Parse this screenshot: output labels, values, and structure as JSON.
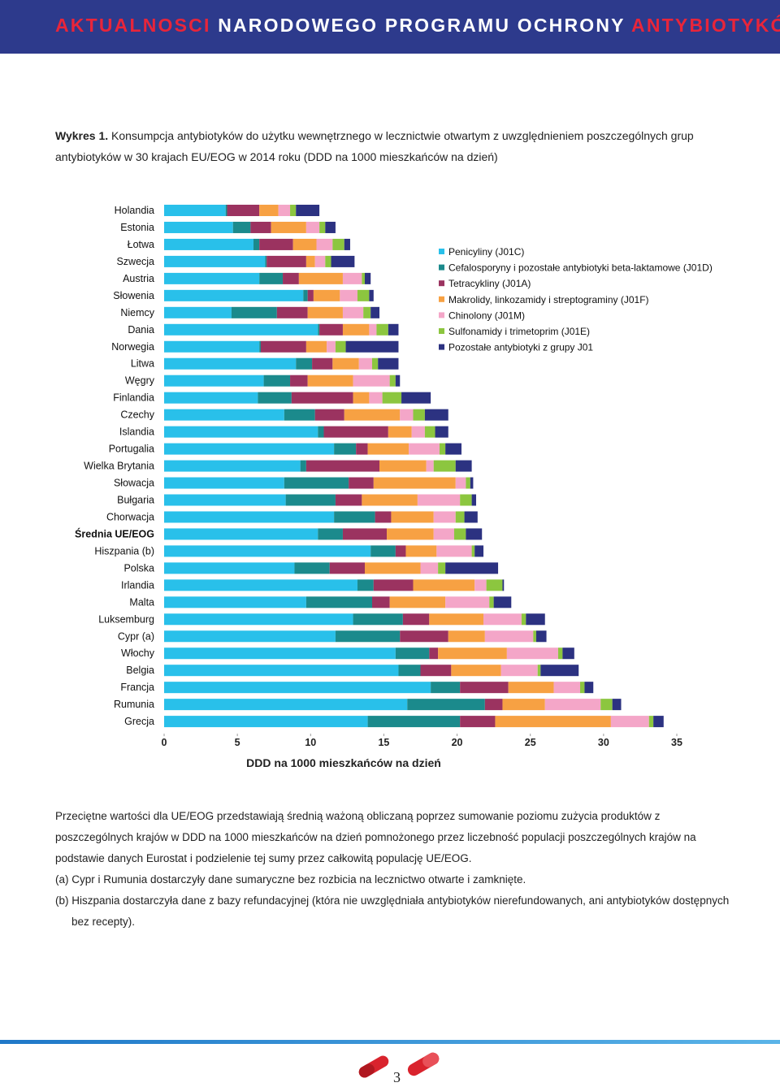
{
  "header": {
    "title_parts": [
      "AKTUALNOSCI",
      "NARODOWEGO PROGRAMU OCHRONY",
      "ANTYBIOTYKÓW"
    ]
  },
  "caption": {
    "label": "Wykres 1.",
    "text": "Konsumpcja antybiotyków do użytku wewnętrznego w lecznictwie otwartym z uwzględnieniem poszczególnych grup antybiotyków w 30 krajach EU/EOG w 2014 roku (DDD na 1000 mieszkańców na dzień)"
  },
  "chart_data": {
    "type": "stacked-barh",
    "x_label": "DDD na 1000 mieszkańców na dzień",
    "categories": [
      "Holandia",
      "Estonia",
      "Łotwa",
      "Szwecja",
      "Austria",
      "Słowenia",
      "Niemcy",
      "Dania",
      "Norwegia",
      "Litwa",
      "Węgry",
      "Finlandia",
      "Czechy",
      "Islandia",
      "Portugalia",
      "Wielka Brytania",
      "Słowacja",
      "Bułgaria",
      "Chorwacja",
      "Średnia UE/EOG",
      "Hiszpania (b)",
      "Polska",
      "Irlandia",
      "Malta",
      "Luksemburg",
      "Cypr (a)",
      "Włochy",
      "Belgia",
      "Francja",
      "Rumunia",
      "Grecja"
    ],
    "xlim": [
      0,
      35
    ],
    "xticks": [
      0,
      5,
      10,
      15,
      20,
      25,
      30,
      35
    ],
    "series": [
      {
        "name": "Penicyliny (J01C)",
        "color": "#29c0ea",
        "values": [
          4.2,
          4.7,
          6.1,
          6.9,
          6.5,
          9.5,
          4.6,
          10.5,
          6.5,
          9.0,
          6.8,
          6.4,
          8.2,
          10.5,
          11.6,
          9.3,
          8.2,
          8.3,
          11.6,
          10.5,
          14.1,
          8.9,
          13.2,
          9.7,
          12.9,
          11.7,
          15.8,
          16.0,
          18.2,
          16.6,
          13.9
        ]
      },
      {
        "name": "Cefalosporyny i pozostałe antybiotyki beta-laktamowe (J01D)",
        "color": "#1b8a8c",
        "values": [
          0.1,
          1.2,
          0.4,
          0.1,
          1.6,
          0.3,
          3.1,
          0.1,
          0.1,
          1.1,
          1.8,
          2.3,
          2.1,
          0.4,
          1.5,
          0.4,
          4.4,
          3.4,
          2.8,
          1.7,
          1.7,
          2.4,
          1.1,
          4.5,
          3.4,
          4.4,
          2.3,
          1.5,
          2.0,
          5.3,
          6.3
        ]
      },
      {
        "name": "Tetracykliny (J01A)",
        "color": "#9b3360",
        "values": [
          2.2,
          1.4,
          2.3,
          2.7,
          1.1,
          0.4,
          2.1,
          1.6,
          3.1,
          1.4,
          1.2,
          4.2,
          2.0,
          4.4,
          0.8,
          5.0,
          1.7,
          1.8,
          1.1,
          3.0,
          0.7,
          2.4,
          2.7,
          1.2,
          1.8,
          3.3,
          0.6,
          2.1,
          3.3,
          1.2,
          2.4
        ]
      },
      {
        "name": "Makrolidy, linkozamidy i streptograminy (J01F)",
        "color": "#f7a143",
        "values": [
          1.3,
          2.4,
          1.6,
          0.6,
          3.0,
          1.8,
          2.4,
          1.8,
          1.4,
          1.8,
          3.1,
          1.1,
          3.8,
          1.6,
          2.8,
          3.2,
          5.6,
          3.8,
          2.9,
          3.2,
          2.1,
          3.8,
          4.2,
          3.8,
          3.7,
          2.5,
          4.7,
          3.4,
          3.1,
          2.9,
          7.9
        ]
      },
      {
        "name": "Chinolony (J01M)",
        "color": "#f4a6c8",
        "values": [
          0.8,
          0.9,
          1.1,
          0.7,
          1.3,
          1.2,
          1.4,
          0.5,
          0.6,
          0.9,
          2.5,
          0.9,
          0.9,
          0.9,
          2.1,
          0.5,
          0.7,
          2.9,
          1.5,
          1.4,
          2.4,
          1.2,
          0.8,
          3.0,
          2.6,
          3.3,
          3.5,
          2.5,
          1.8,
          3.8,
          2.6
        ]
      },
      {
        "name": "Sulfonamidy i trimetoprim (J01E)",
        "color": "#8cc63f",
        "values": [
          0.4,
          0.4,
          0.8,
          0.4,
          0.2,
          0.8,
          0.5,
          0.8,
          0.7,
          0.4,
          0.4,
          1.3,
          0.8,
          0.7,
          0.4,
          1.5,
          0.3,
          0.8,
          0.6,
          0.8,
          0.2,
          0.5,
          1.1,
          0.3,
          0.3,
          0.2,
          0.3,
          0.2,
          0.3,
          0.8,
          0.3
        ]
      },
      {
        "name": "Pozostałe antybiotyki z grupy J01",
        "color": "#2c3281",
        "values": [
          1.6,
          0.7,
          0.4,
          1.6,
          0.4,
          0.3,
          0.6,
          0.7,
          3.6,
          1.4,
          0.3,
          2.0,
          1.6,
          0.9,
          1.1,
          1.1,
          0.2,
          0.3,
          0.9,
          1.1,
          0.6,
          3.6,
          0.1,
          1.2,
          1.3,
          0.7,
          0.8,
          2.6,
          0.6,
          0.6,
          0.7
        ]
      }
    ]
  },
  "notes": [
    "Przeciętne wartości dla UE/EOG przedstawiają średnią ważoną obliczaną poprzez sumowanie poziomu zużycia produktów z poszczególnych krajów w DDD na 1000 mieszkańców na dzień pomnożonego przez liczebność populacji poszczególnych krajów na podstawie danych Eurostat i podzielenie tej sumy przez całkowitą populację UE/EOG.",
    "(a) Cypr i Rumunia dostarczyły dane sumaryczne bez rozbicia na lecznictwo otwarte i zamknięte.",
    "(b) Hiszpania dostarczyła dane z bazy refundacyjnej (która nie uwzględniała antybiotyków nierefundowanych, ani antybiotyków dostępnych bez recepty)."
  ],
  "page_number": "3"
}
